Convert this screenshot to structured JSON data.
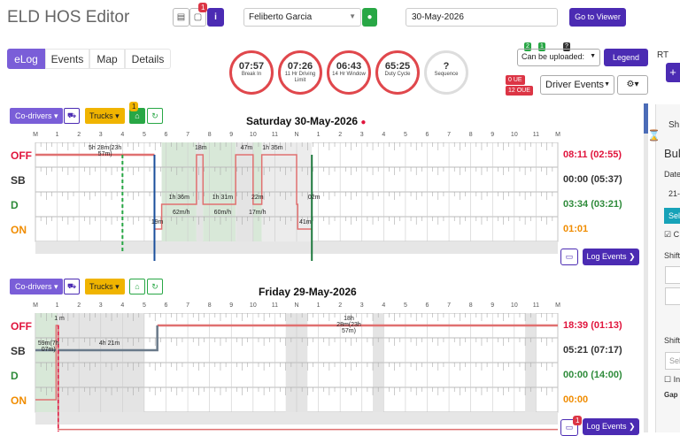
{
  "header": {
    "title": "ELD HOS Editor",
    "notification_count": "1",
    "info_label": "i",
    "driver": "Feliberto Garcia",
    "date": "30-May-2026",
    "viewer_button": "Go to Viewer"
  },
  "tabs": [
    "eLog",
    "Events",
    "Map",
    "Details"
  ],
  "gauges": [
    {
      "value": "07:57",
      "label": "Break In"
    },
    {
      "value": "07:26",
      "label": "11 Hr Driving Limit"
    },
    {
      "value": "06:43",
      "label": "14 Hr Window"
    },
    {
      "value": "65:25",
      "label": "Duty Cycle"
    },
    {
      "value": "?",
      "label": "Sequence"
    }
  ],
  "controls": {
    "badge_green_1": "2",
    "badge_green_2": "1",
    "badge_dark": "?",
    "upload_select": "Can be uploaded:",
    "legend_button": "Legend",
    "ue_badge": "0 UE",
    "oue_badge": "12 OUE",
    "driver_events": "Driver Events",
    "rt_label": "RT"
  },
  "toolbar": {
    "codrivers": "Co-drivers",
    "trucks": "Trucks",
    "truck_badge": "1"
  },
  "hours": [
    "M",
    "1",
    "2",
    "3",
    "4",
    "5",
    "6",
    "7",
    "8",
    "9",
    "10",
    "11",
    "N",
    "1",
    "2",
    "3",
    "4",
    "5",
    "6",
    "7",
    "8",
    "9",
    "10",
    "11",
    "M"
  ],
  "status_labels": [
    "OFF",
    "SB",
    "D",
    "ON"
  ],
  "day1": {
    "title": "Saturday 30-May-2026",
    "totals": [
      "08:11 (02:55)",
      "00:00 (05:37)",
      "03:34 (03:21)",
      "01:01"
    ],
    "segment_labels": [
      {
        "text": "5h 28m(23h 57m)",
        "hour": 3.2,
        "row": 0
      },
      {
        "text": "18m",
        "hour": 7.6,
        "row": 0
      },
      {
        "text": "47m",
        "hour": 9.7,
        "row": 0
      },
      {
        "text": "1h 35m",
        "hour": 10.9,
        "row": 0
      },
      {
        "text": "1h 36m",
        "hour": 6.6,
        "row": 2
      },
      {
        "text": "1h 31m",
        "hour": 8.6,
        "row": 2
      },
      {
        "text": "22m",
        "hour": 10.2,
        "row": 2
      },
      {
        "text": "02m",
        "hour": 12.8,
        "row": 2
      },
      {
        "text": "62m/h",
        "hour": 6.7,
        "row": 2.5
      },
      {
        "text": "60m/h",
        "hour": 8.6,
        "row": 2.5
      },
      {
        "text": "17m/h",
        "hour": 10.2,
        "row": 2.5
      },
      {
        "text": "19m",
        "hour": 5.6,
        "row": 3
      },
      {
        "text": "41m",
        "hour": 12.4,
        "row": 3
      }
    ],
    "cr_label": "CR",
    "log_events": "Log Events"
  },
  "day2": {
    "title": "Friday 29-May-2026",
    "totals": [
      "18:39 (01:13)",
      "05:21 (07:17)",
      "00:00 (14:00)",
      "00:00"
    ],
    "segment_labels": [
      {
        "text": "1 m",
        "hour": 1.1,
        "row": 0
      },
      {
        "text": "18h 28m(23h 57m)",
        "hour": 14.4,
        "row": 0
      },
      {
        "text": "59m(7h 07m)",
        "hour": 0.6,
        "row": 1
      },
      {
        "text": "4h 21m",
        "hour": 3.4,
        "row": 1
      }
    ],
    "comment_count": "1",
    "log_events": "Log Events"
  },
  "side_panel": {
    "tab": "Sh",
    "heading": "Bul",
    "date_label": "Date",
    "date_value": "21-",
    "select_btn": "Sel",
    "check_label": "C",
    "shift_label": "Shift",
    "shift2_label": "Shift",
    "select_placeholder": "Sel",
    "check2_label": "In",
    "gap_label": "Gap"
  }
}
